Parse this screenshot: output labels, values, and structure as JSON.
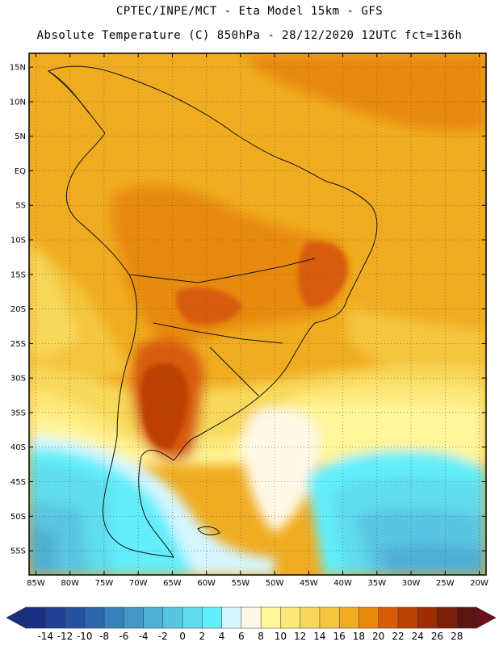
{
  "header": {
    "line1": "CPTEC/INPE/MCT -  Eta Model 15km - GFS",
    "line2": "Absolute Temperature (C) 850hPa - 28/12/2020 12UTC fct=136h"
  },
  "axes": {
    "lat_labels": [
      "15N",
      "10N",
      "5N",
      "EQ",
      "5S",
      "10S",
      "15S",
      "20S",
      "25S",
      "30S",
      "35S",
      "40S",
      "45S",
      "50S",
      "55S"
    ],
    "lat_values": [
      15,
      10,
      5,
      0,
      -5,
      -10,
      -15,
      -20,
      -25,
      -30,
      -35,
      -40,
      -45,
      -50,
      -55
    ],
    "lon_labels": [
      "85W",
      "80W",
      "75W",
      "70W",
      "65W",
      "60W",
      "55W",
      "50W",
      "45W",
      "40W",
      "35W",
      "30W",
      "25W",
      "20W"
    ],
    "lon_values": [
      -85,
      -80,
      -75,
      -70,
      -65,
      -60,
      -55,
      -50,
      -45,
      -40,
      -35,
      -30,
      -25,
      -20
    ],
    "lon_range": [
      -86,
      -19
    ],
    "lat_range": [
      -58.5,
      17
    ]
  },
  "colorbar": {
    "labels": [
      "-14",
      "-12",
      "-10",
      "-8",
      "-6",
      "-4",
      "-2",
      "0",
      "2",
      "4",
      "6",
      "8",
      "10",
      "12",
      "14",
      "16",
      "18",
      "20",
      "22",
      "24",
      "26",
      "28"
    ],
    "colors": [
      "#1a2f82",
      "#213f93",
      "#27529f",
      "#2d66ad",
      "#3680bb",
      "#4498c8",
      "#4fb0d6",
      "#58c6e2",
      "#5fdcee",
      "#62eefa",
      "#d6f6ff",
      "#fff8e6",
      "#fff59a",
      "#fde87a",
      "#f8d85a",
      "#f4c53e",
      "#f0ac20",
      "#e88a10",
      "#d85c08",
      "#bc4105",
      "#9c2d05",
      "#7c1f08",
      "#5c1410"
    ],
    "under_color": "#1a2f82",
    "over_color": "#6b0f1e"
  },
  "map": {
    "palette": {
      "t_minus2": "#4fb0d6",
      "t0": "#58c6e2",
      "t2": "#5fdcee",
      "t4": "#62eefa",
      "t6": "#d6f6ff",
      "t8": "#fff8e6",
      "t10": "#fff59a",
      "t12": "#fde87a",
      "t14": "#f8d85a",
      "t16": "#f4c53e",
      "t18": "#f0ac20",
      "t20": "#e88a10",
      "t22": "#d85c08",
      "t24": "#bc4105"
    }
  }
}
